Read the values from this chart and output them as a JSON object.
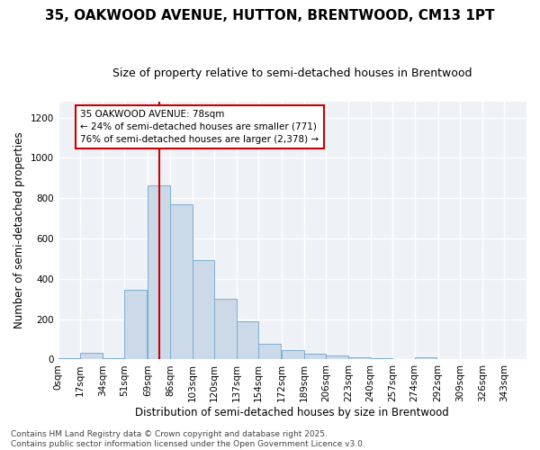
{
  "title": "35, OAKWOOD AVENUE, HUTTON, BRENTWOOD, CM13 1PT",
  "subtitle": "Size of property relative to semi-detached houses in Brentwood",
  "xlabel": "Distribution of semi-detached houses by size in Brentwood",
  "ylabel": "Number of semi-detached properties",
  "bar_color": "#ccd9e8",
  "bar_edge_color": "#7aafd4",
  "bin_labels": [
    "0sqm",
    "17sqm",
    "34sqm",
    "51sqm",
    "69sqm",
    "86sqm",
    "103sqm",
    "120sqm",
    "137sqm",
    "154sqm",
    "172sqm",
    "189sqm",
    "206sqm",
    "223sqm",
    "240sqm",
    "257sqm",
    "274sqm",
    "292sqm",
    "309sqm",
    "326sqm",
    "343sqm"
  ],
  "bin_edges": [
    0,
    17,
    34,
    51,
    69,
    86,
    103,
    120,
    137,
    154,
    172,
    189,
    206,
    223,
    240,
    257,
    274,
    292,
    309,
    326,
    343,
    360
  ],
  "bar_heights": [
    8,
    35,
    8,
    345,
    865,
    770,
    495,
    300,
    190,
    80,
    45,
    30,
    18,
    12,
    8,
    0,
    10,
    4,
    0,
    0,
    0
  ],
  "ylim": [
    0,
    1280
  ],
  "yticks": [
    0,
    200,
    400,
    600,
    800,
    1000,
    1200
  ],
  "property_size": 78,
  "vline_color": "#cc0000",
  "annotation_line1": "35 OAKWOOD AVENUE: 78sqm",
  "annotation_line2": "← 24% of semi-detached houses are smaller (771)",
  "annotation_line3": "76% of semi-detached houses are larger (2,378) →",
  "annotation_box_color": "#ffffff",
  "annotation_box_edge": "#cc0000",
  "footer_text": "Contains HM Land Registry data © Crown copyright and database right 2025.\nContains public sector information licensed under the Open Government Licence v3.0.",
  "bg_color": "#eef2f7",
  "grid_color": "#ffffff",
  "fig_bg_color": "#ffffff",
  "title_fontsize": 11,
  "subtitle_fontsize": 9,
  "axis_label_fontsize": 8.5,
  "tick_fontsize": 7.5,
  "annotation_fontsize": 7.5,
  "footer_fontsize": 6.5
}
